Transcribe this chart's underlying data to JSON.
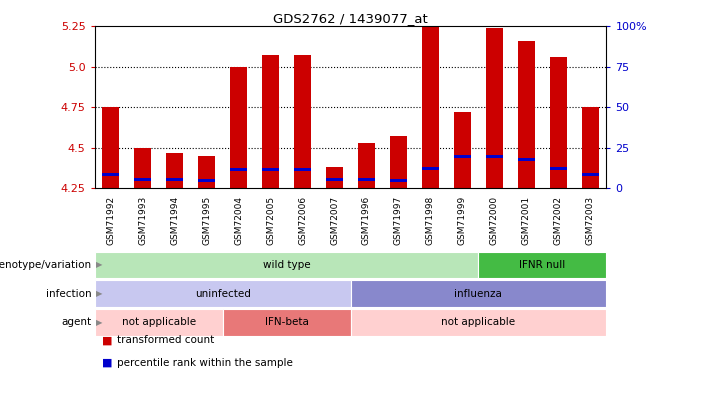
{
  "title": "GDS2762 / 1439077_at",
  "samples": [
    "GSM71992",
    "GSM71993",
    "GSM71994",
    "GSM71995",
    "GSM72004",
    "GSM72005",
    "GSM72006",
    "GSM72007",
    "GSM71996",
    "GSM71997",
    "GSM71998",
    "GSM71999",
    "GSM72000",
    "GSM72001",
    "GSM72002",
    "GSM72003"
  ],
  "bar_heights": [
    4.75,
    4.5,
    4.47,
    4.45,
    5.0,
    5.07,
    5.07,
    4.38,
    4.53,
    4.57,
    5.25,
    4.72,
    5.24,
    5.16,
    5.06,
    4.75
  ],
  "blue_positions": [
    4.335,
    4.305,
    4.305,
    4.298,
    4.365,
    4.365,
    4.365,
    4.305,
    4.305,
    4.298,
    4.37,
    4.445,
    4.445,
    4.43,
    4.375,
    4.335
  ],
  "ymin": 4.25,
  "ymax": 5.25,
  "yticks_left": [
    4.25,
    4.5,
    4.75,
    5.0,
    5.25
  ],
  "yticks_right_vals": [
    0,
    25,
    50,
    75,
    100
  ],
  "yticks_right_labels": [
    "0",
    "25",
    "50",
    "75",
    "100%"
  ],
  "bar_color": "#cc0000",
  "blue_color": "#0000cc",
  "annotation_rows": [
    {
      "label": "genotype/variation",
      "segments": [
        {
          "text": "wild type",
          "start": 0,
          "end": 12,
          "color": "#b8e6b8"
        },
        {
          "text": "IFNR null",
          "start": 12,
          "end": 16,
          "color": "#44bb44"
        }
      ]
    },
    {
      "label": "infection",
      "segments": [
        {
          "text": "uninfected",
          "start": 0,
          "end": 8,
          "color": "#c8c8f0"
        },
        {
          "text": "influenza",
          "start": 8,
          "end": 16,
          "color": "#8888cc"
        }
      ]
    },
    {
      "label": "agent",
      "segments": [
        {
          "text": "not applicable",
          "start": 0,
          "end": 4,
          "color": "#ffd0d0"
        },
        {
          "text": "IFN-beta",
          "start": 4,
          "end": 8,
          "color": "#e87878"
        },
        {
          "text": "not applicable",
          "start": 8,
          "end": 16,
          "color": "#ffd0d0"
        }
      ]
    }
  ],
  "legend_items": [
    {
      "color": "#cc0000",
      "label": "transformed count"
    },
    {
      "color": "#0000cc",
      "label": "percentile rank within the sample"
    }
  ]
}
